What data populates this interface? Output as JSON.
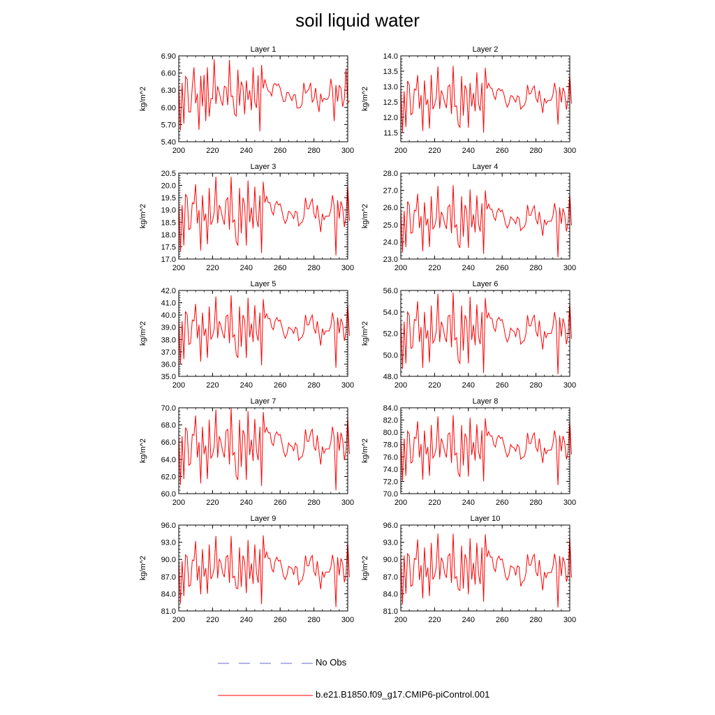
{
  "figure": {
    "title": "soil liquid water"
  },
  "legend": {
    "obs_label": "No Obs",
    "obs_color": "#6666cc",
    "model_label": "b.e21.B1850.f09_g17.CMIP6-piControl.001",
    "model_color": "#ff0000"
  },
  "chart_data": [
    {
      "type": "line",
      "title": "Layer 1",
      "ylabel": "kg/m^2",
      "xlim": [
        200,
        300
      ],
      "ylim": [
        5.4,
        6.9
      ],
      "xticks": [
        "200",
        "220",
        "240",
        "260",
        "280",
        "300"
      ],
      "yticks": [
        "5.40",
        "5.70",
        "6.00",
        "6.30",
        "6.60",
        "6.90"
      ],
      "x_start": 200,
      "values": [
        6.42,
        5.6,
        6.43,
        5.72,
        6.54,
        6.49,
        5.92,
        5.92,
        6.36,
        6.7,
        6.07,
        6.24,
        5.61,
        6.55,
        6.02,
        6.57,
        5.76,
        6.7,
        5.84,
        6.15,
        6.15,
        6.84,
        6.06,
        6.37,
        6.26,
        6.12,
        6.03,
        6.37,
        6.35,
        6.04,
        6.83,
        6.19,
        6.2,
        5.88,
        5.85,
        6.66,
        6.03,
        6.45,
        6.36,
        5.88,
        6.47,
        6.13,
        6.3,
        5.95,
        6.7,
        6.09,
        5.99,
        6.56,
        5.58,
        6.74,
        6.33,
        6.49,
        6.37,
        6.28,
        6.27,
        6.2,
        6.39,
        6.42,
        6.38,
        6.41,
        6.34,
        6.21,
        6.1,
        6.11,
        6.26,
        6.26,
        6.18,
        6.12,
        6.22,
        6.22,
        5.99,
        5.99,
        6.0,
        6.06,
        6.43,
        6.25,
        6.28,
        6.32,
        6.43,
        6.09,
        6.14,
        6.34,
        6.09,
        5.92,
        6.24,
        6.1,
        6.16,
        6.14,
        6.14,
        6.2,
        6.5,
        6.3,
        5.76,
        6.39,
        6.1,
        6.38,
        6.34,
        6.01,
        6.15,
        6.68,
        6.07,
        6.12
      ]
    },
    {
      "type": "line",
      "title": "Layer 2",
      "ylabel": "kg/m^2",
      "xlim": [
        200,
        300
      ],
      "ylim": [
        11.2,
        14.0
      ],
      "xticks": [
        "200",
        "220",
        "240",
        "260",
        "280",
        "300"
      ],
      "yticks": [
        "11.5",
        "12.0",
        "12.5",
        "13.0",
        "13.5",
        "14.0"
      ],
      "x_start": 200,
      "values": [
        12.96,
        11.5,
        12.85,
        11.68,
        13.18,
        13.06,
        12.08,
        12.13,
        12.92,
        12.88,
        13.37,
        12.28,
        12.72,
        11.55,
        13.2,
        12.4,
        12.58,
        11.63,
        13.38,
        12.26,
        12.4,
        12.64,
        13.65,
        12.27,
        12.87,
        12.72,
        12.47,
        12.3,
        13.0,
        13.05,
        12.1,
        13.68,
        12.35,
        12.37,
        11.76,
        11.67,
        13.34,
        12.05,
        13.04,
        12.86,
        11.66,
        13.12,
        12.35,
        12.79,
        12.19,
        13.46,
        12.45,
        12.21,
        13.12,
        11.5,
        13.61,
        12.93,
        13.1,
        12.96,
        12.94,
        12.7,
        12.58,
        12.86,
        12.94,
        12.86,
        12.9,
        12.76,
        12.5,
        12.33,
        12.44,
        12.7,
        12.69,
        12.59,
        12.49,
        12.7,
        12.66,
        12.26,
        12.34,
        12.38,
        12.52,
        13.05,
        12.75,
        12.78,
        12.94,
        13.02,
        12.62,
        12.49,
        12.87,
        12.49,
        12.14,
        12.62,
        12.46,
        12.55,
        12.55,
        12.56,
        12.72,
        13.12,
        12.83,
        11.76,
        12.98,
        12.48,
        12.96,
        12.81,
        12.25,
        12.58,
        13.36,
        12.44
      ]
    },
    {
      "type": "line",
      "title": "Layer 3",
      "ylabel": "kg/m^2",
      "xlim": [
        200,
        300
      ],
      "ylim": [
        17.0,
        20.5
      ],
      "xticks": [
        "200",
        "220",
        "240",
        "260",
        "280",
        "300"
      ],
      "yticks": [
        "17.0",
        "17.5",
        "18.0",
        "18.5",
        "19.0",
        "19.5",
        "20.0",
        "20.5"
      ],
      "x_start": 200,
      "values": [
        19.3,
        17.3,
        19.2,
        17.55,
        19.65,
        19.5,
        18.2,
        18.25,
        19.3,
        19.25,
        20.05,
        18.45,
        19.0,
        17.35,
        19.6,
        18.55,
        18.85,
        17.6,
        19.9,
        18.4,
        18.55,
        18.9,
        20.35,
        18.45,
        19.2,
        19.0,
        18.65,
        18.4,
        19.4,
        19.5,
        18.2,
        20.35,
        18.5,
        18.6,
        17.7,
        17.55,
        19.9,
        18.05,
        19.5,
        19.2,
        17.55,
        20.2,
        18.5,
        19.1,
        18.25,
        19.95,
        18.65,
        18.3,
        19.6,
        17.25,
        20.15,
        19.3,
        19.55,
        19.3,
        19.3,
        18.95,
        18.8,
        19.2,
        19.35,
        19.2,
        19.25,
        19.0,
        18.65,
        18.45,
        18.6,
        18.95,
        18.9,
        18.8,
        18.65,
        18.95,
        18.9,
        18.35,
        18.45,
        18.5,
        18.7,
        19.5,
        19.05,
        19.05,
        19.3,
        19.45,
        18.85,
        18.65,
        19.2,
        18.65,
        18.1,
        18.85,
        18.6,
        18.75,
        18.75,
        18.75,
        19.0,
        19.6,
        19.15,
        17.15,
        19.4,
        18.65,
        19.35,
        19.1,
        18.3,
        18.75,
        20.0,
        18.55
      ]
    },
    {
      "type": "line",
      "title": "Layer 4",
      "ylabel": "kg/m^2",
      "xlim": [
        200,
        300
      ],
      "ylim": [
        23.0,
        28.0
      ],
      "xticks": [
        "200",
        "220",
        "240",
        "260",
        "280",
        "300"
      ],
      "yticks": [
        "23.0",
        "24.0",
        "25.0",
        "26.0",
        "27.0",
        "28.0"
      ],
      "x_start": 200,
      "values": [
        25.9,
        23.4,
        25.8,
        23.7,
        26.35,
        26.15,
        24.5,
        24.55,
        25.85,
        25.8,
        26.8,
        24.8,
        25.5,
        23.45,
        26.3,
        24.95,
        25.35,
        23.7,
        26.65,
        24.75,
        24.9,
        25.35,
        27.25,
        24.8,
        25.75,
        25.5,
        25.05,
        24.75,
        26.05,
        26.15,
        24.5,
        27.3,
        24.85,
        25.0,
        23.85,
        23.65,
        26.65,
        24.3,
        26.15,
        25.8,
        23.65,
        27.05,
        24.85,
        25.6,
        24.55,
        26.7,
        25.05,
        24.6,
        26.25,
        23.3,
        27.0,
        25.9,
        26.2,
        25.9,
        25.9,
        25.45,
        25.25,
        25.75,
        25.95,
        25.75,
        25.85,
        25.5,
        25.05,
        24.8,
        25.0,
        25.45,
        25.35,
        25.25,
        25.05,
        25.45,
        25.35,
        24.65,
        24.8,
        24.85,
        25.1,
        26.15,
        25.55,
        25.55,
        25.9,
        26.1,
        25.3,
        25.05,
        25.75,
        25.05,
        24.35,
        25.3,
        25.0,
        25.2,
        25.2,
        25.2,
        25.5,
        26.25,
        25.7,
        23.1,
        26.0,
        25.05,
        25.95,
        25.6,
        24.6,
        25.15,
        26.8,
        24.95
      ]
    },
    {
      "type": "line",
      "title": "Layer 5",
      "ylabel": "kg/m^2",
      "xlim": [
        200,
        300
      ],
      "ylim": [
        35.0,
        42.0
      ],
      "xticks": [
        "200",
        "220",
        "240",
        "260",
        "280",
        "300"
      ],
      "yticks": [
        "35.0",
        "36.0",
        "37.0",
        "38.0",
        "39.0",
        "40.0",
        "41.0",
        "42.0"
      ],
      "x_start": 200,
      "values": [
        39.6,
        36.0,
        39.5,
        36.4,
        40.3,
        40.0,
        37.6,
        37.7,
        39.6,
        39.5,
        40.9,
        38.1,
        39.2,
        36.2,
        40.2,
        38.3,
        38.9,
        36.5,
        40.7,
        38.0,
        38.3,
        38.9,
        41.5,
        38.1,
        39.5,
        39.1,
        38.5,
        38.1,
        39.9,
        40.0,
        37.7,
        41.6,
        38.2,
        38.4,
        36.8,
        36.5,
        40.7,
        37.4,
        40.0,
        39.6,
        36.5,
        41.4,
        38.2,
        39.3,
        37.8,
        40.8,
        38.5,
        37.9,
        40.2,
        35.9,
        41.3,
        39.7,
        40.1,
        39.7,
        39.7,
        39.0,
        38.8,
        39.5,
        39.8,
        39.5,
        39.6,
        39.1,
        38.5,
        38.1,
        38.4,
        39.0,
        38.9,
        38.8,
        38.5,
        39.0,
        38.9,
        37.9,
        38.1,
        38.2,
        38.6,
        40.0,
        39.2,
        39.2,
        39.7,
        40.0,
        38.9,
        38.5,
        39.5,
        38.5,
        37.5,
        38.9,
        38.4,
        38.7,
        38.7,
        38.7,
        39.1,
        40.2,
        39.4,
        35.7,
        39.8,
        38.5,
        39.7,
        39.3,
        37.9,
        38.6,
        40.9,
        38.3
      ]
    },
    {
      "type": "line",
      "title": "Layer 6",
      "ylabel": "kg/m^2",
      "xlim": [
        200,
        300
      ],
      "ylim": [
        48.0,
        56.0
      ],
      "xticks": [
        "200",
        "220",
        "240",
        "260",
        "280",
        "300"
      ],
      "yticks": [
        "48.0",
        "50.0",
        "52.0",
        "54.0",
        "56.0"
      ],
      "x_start": 200,
      "values": [
        53.3,
        48.7,
        53.1,
        49.2,
        54.0,
        53.7,
        50.6,
        50.7,
        53.3,
        53.2,
        55.0,
        51.2,
        52.6,
        48.8,
        54.0,
        51.5,
        52.3,
        49.3,
        54.6,
        51.1,
        51.4,
        52.2,
        55.7,
        51.2,
        53.1,
        52.6,
        51.7,
        51.2,
        53.6,
        53.7,
        50.7,
        55.8,
        51.4,
        51.6,
        49.5,
        49.2,
        54.6,
        50.4,
        53.7,
        53.2,
        49.2,
        55.4,
        51.4,
        52.8,
        50.9,
        54.7,
        51.7,
        51.0,
        54.0,
        48.3,
        55.3,
        53.4,
        53.9,
        53.4,
        53.4,
        52.5,
        52.2,
        53.2,
        53.5,
        53.2,
        53.3,
        52.6,
        51.7,
        51.2,
        51.6,
        52.5,
        52.3,
        52.2,
        51.7,
        52.5,
        52.3,
        51.0,
        51.2,
        51.3,
        51.9,
        53.7,
        52.7,
        52.7,
        53.4,
        53.7,
        52.2,
        51.7,
        53.2,
        51.7,
        50.5,
        52.2,
        51.6,
        52.0,
        52.0,
        52.0,
        52.6,
        54.0,
        53.0,
        48.2,
        53.5,
        51.7,
        53.4,
        52.8,
        51.0,
        51.9,
        54.9,
        51.5
      ]
    },
    {
      "type": "line",
      "title": "Layer 7",
      "ylabel": "kg/m^2",
      "xlim": [
        200,
        300
      ],
      "ylim": [
        60.0,
        70.0
      ],
      "xticks": [
        "200",
        "220",
        "240",
        "260",
        "280",
        "300"
      ],
      "yticks": [
        "60.0",
        "62.0",
        "64.0",
        "66.0",
        "68.0",
        "70.0"
      ],
      "x_start": 200,
      "values": [
        66.9,
        61.0,
        66.7,
        61.7,
        67.7,
        67.3,
        63.3,
        63.5,
        66.9,
        66.8,
        69.1,
        64.2,
        66.0,
        61.2,
        67.8,
        64.6,
        65.6,
        61.7,
        68.6,
        64.1,
        64.5,
        65.5,
        69.8,
        64.2,
        66.7,
        66.0,
        64.9,
        64.2,
        67.3,
        67.5,
        63.4,
        70.0,
        64.5,
        64.8,
        62.0,
        61.6,
        68.6,
        63.1,
        67.4,
        66.8,
        61.6,
        69.6,
        64.5,
        66.3,
        63.8,
        68.7,
        65.0,
        63.9,
        67.8,
        60.9,
        69.5,
        67.1,
        67.7,
        67.1,
        67.1,
        65.9,
        65.6,
        66.8,
        67.2,
        66.8,
        66.9,
        66.0,
        65.0,
        64.3,
        64.7,
        65.9,
        65.6,
        65.5,
        65.0,
        65.9,
        65.6,
        63.9,
        64.2,
        64.3,
        65.1,
        67.5,
        66.1,
        66.1,
        67.1,
        67.5,
        65.5,
        65.0,
        66.8,
        65.0,
        63.4,
        65.5,
        64.7,
        65.2,
        65.2,
        65.2,
        66.0,
        67.8,
        66.5,
        60.4,
        67.2,
        65.0,
        67.1,
        66.3,
        63.9,
        65.0,
        68.9,
        64.6
      ]
    },
    {
      "type": "line",
      "title": "Layer 8",
      "ylabel": "kg/m^2",
      "xlim": [
        200,
        300
      ],
      "ylim": [
        70.0,
        84.0
      ],
      "xticks": [
        "200",
        "220",
        "240",
        "260",
        "280",
        "300"
      ],
      "yticks": [
        "70.0",
        "72.0",
        "74.0",
        "76.0",
        "78.0",
        "80.0",
        "82.0",
        "84.0"
      ],
      "x_start": 200,
      "values": [
        79.2,
        72.1,
        79.0,
        72.9,
        80.2,
        79.7,
        75.0,
        75.2,
        79.2,
        79.0,
        81.8,
        75.9,
        78.1,
        72.3,
        80.3,
        76.4,
        77.6,
        72.9,
        81.2,
        75.8,
        76.3,
        77.5,
        82.6,
        75.9,
        79.0,
        78.1,
        76.8,
        75.9,
        79.7,
        79.9,
        75.0,
        82.8,
        76.3,
        76.6,
        73.3,
        72.8,
        81.2,
        74.6,
        79.8,
        79.0,
        72.8,
        82.4,
        76.3,
        78.4,
        75.4,
        81.3,
        76.9,
        75.6,
        80.3,
        72.0,
        82.3,
        79.4,
        80.1,
        79.4,
        79.4,
        78.0,
        77.6,
        79.0,
        79.5,
        79.0,
        79.2,
        78.1,
        76.9,
        76.0,
        76.5,
        78.0,
        77.6,
        77.5,
        76.9,
        78.0,
        77.6,
        75.6,
        75.9,
        76.0,
        77.0,
        79.9,
        78.2,
        78.2,
        79.4,
        79.9,
        77.5,
        76.9,
        79.0,
        76.9,
        75.0,
        77.5,
        76.5,
        77.1,
        77.1,
        77.1,
        78.1,
        80.3,
        78.7,
        71.4,
        79.5,
        76.9,
        79.4,
        78.4,
        75.6,
        76.9,
        81.8,
        76.4
      ]
    },
    {
      "type": "line",
      "title": "Layer 9",
      "ylabel": "kg/m^2",
      "xlim": [
        200,
        300
      ],
      "ylim": [
        81.0,
        96.0
      ],
      "xticks": [
        "200",
        "220",
        "240",
        "260",
        "280",
        "300"
      ],
      "yticks": [
        "81.0",
        "84.0",
        "87.0",
        "90.0",
        "93.0",
        "96.0"
      ],
      "x_start": 200,
      "values": [
        89.9,
        82.3,
        89.7,
        83.6,
        90.8,
        90.4,
        85.3,
        85.5,
        89.9,
        89.8,
        93.2,
        86.3,
        88.9,
        83.9,
        91.8,
        87.0,
        88.5,
        84.0,
        92.6,
        86.6,
        87.2,
        88.5,
        94.1,
        86.7,
        90.1,
        89.4,
        87.6,
        86.9,
        90.4,
        90.7,
        85.9,
        94.1,
        86.8,
        87.1,
        85.0,
        84.9,
        92.1,
        85.2,
        90.7,
        89.6,
        84.1,
        93.4,
        86.6,
        89.3,
        85.7,
        92.6,
        87.7,
        85.9,
        91.8,
        82.2,
        94.2,
        90.2,
        91.3,
        90.2,
        90.2,
        88.4,
        87.8,
        89.7,
        90.4,
        89.7,
        89.9,
        88.6,
        87.1,
        86.5,
        87.2,
        88.8,
        88.6,
        88.4,
        87.3,
        88.8,
        88.6,
        85.5,
        86.2,
        86.4,
        87.6,
        90.7,
        88.9,
        88.9,
        90.2,
        90.7,
        87.9,
        87.2,
        89.7,
        87.2,
        84.8,
        87.9,
        86.9,
        87.8,
        87.8,
        87.8,
        88.6,
        90.8,
        89.1,
        81.7,
        90.4,
        87.2,
        90.2,
        89.3,
        86.0,
        87.4,
        93.1,
        86.9
      ]
    },
    {
      "type": "line",
      "title": "Layer 10",
      "ylabel": "kg/m^2",
      "xlim": [
        200,
        300
      ],
      "ylim": [
        81.0,
        96.0
      ],
      "xticks": [
        "200",
        "220",
        "240",
        "260",
        "280",
        "300"
      ],
      "yticks": [
        "81.0",
        "84.0",
        "87.0",
        "90.0",
        "93.0",
        "96.0"
      ],
      "x_start": 200,
      "values": [
        90.5,
        82.2,
        90.7,
        84.0,
        91.0,
        90.6,
        85.3,
        85.5,
        90.2,
        90.0,
        93.5,
        86.4,
        89.0,
        83.2,
        92.1,
        86.9,
        88.6,
        83.6,
        92.9,
        86.5,
        87.1,
        88.7,
        94.5,
        86.5,
        90.3,
        89.5,
        87.5,
        86.8,
        90.6,
        91.0,
        85.9,
        94.5,
        86.7,
        87.0,
        84.8,
        84.6,
        92.4,
        84.9,
        90.9,
        89.8,
        83.9,
        93.7,
        86.5,
        89.4,
        85.6,
        92.9,
        87.6,
        85.7,
        92.1,
        82.6,
        94.4,
        90.4,
        91.5,
        90.4,
        90.4,
        88.5,
        87.9,
        89.9,
        90.6,
        89.9,
        90.1,
        88.7,
        87.0,
        86.4,
        87.1,
        88.9,
        88.7,
        88.5,
        87.2,
        88.9,
        88.7,
        85.3,
        86.1,
        86.3,
        87.5,
        90.9,
        89.0,
        89.0,
        90.4,
        90.9,
        87.8,
        87.1,
        89.9,
        87.1,
        84.6,
        87.8,
        86.8,
        87.7,
        87.7,
        87.7,
        88.7,
        91.0,
        89.2,
        81.6,
        90.6,
        87.1,
        90.4,
        89.4,
        86.1,
        87.3,
        94.0,
        86.8
      ]
    }
  ]
}
